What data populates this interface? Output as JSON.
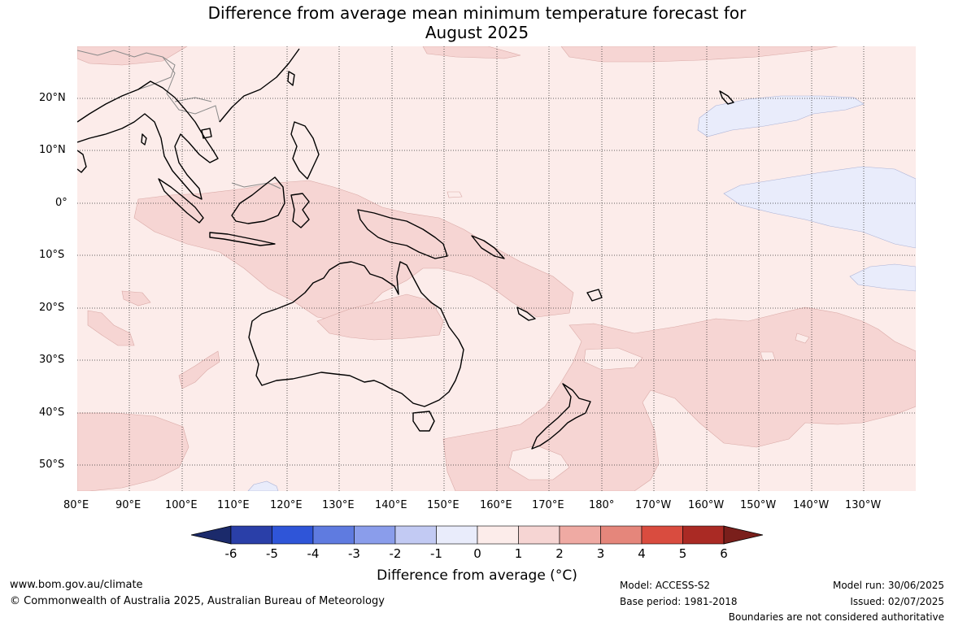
{
  "title_line1": "Difference from average mean minimum temperature forecast for",
  "title_line2": "August 2025",
  "lat_labels": [
    "20°N",
    "10°N",
    "0°",
    "10°S",
    "20°S",
    "30°S",
    "40°S",
    "50°S"
  ],
  "lon_labels": [
    "80°E",
    "90°E",
    "100°E",
    "110°E",
    "120°E",
    "130°E",
    "140°E",
    "150°E",
    "160°E",
    "170°E",
    "180°",
    "170°W",
    "160°W",
    "150°W",
    "140°W",
    "130°W"
  ],
  "colorbar": {
    "ticks": [
      "-6",
      "-5",
      "-4",
      "-3",
      "-2",
      "-1",
      "0",
      "1",
      "2",
      "3",
      "4",
      "5",
      "6"
    ],
    "colors": [
      "#1b2a6b",
      "#2a3fa8",
      "#2f55d8",
      "#5f7be0",
      "#8a9deb",
      "#c2caf3",
      "#e9ecfb",
      "#fcecea",
      "#f6d5d3",
      "#efaaa3",
      "#e5867b",
      "#d94c3f",
      "#aa2a24",
      "#7a1f1b"
    ],
    "label": "Difference from average (",
    "label_unit": "°C",
    "label_close": ")"
  },
  "footer": {
    "website": "www.bom.gov.au/climate",
    "copyright": "© Commonwealth of Australia 2025, Australian Bureau of Meteorology",
    "model": "Model: ACCESS-S2",
    "base_period": "Base period: 1981-2018",
    "model_run": "Model run: 30/06/2025",
    "issued": "Issued: 02/07/2025",
    "disclaimer": "Boundaries are not considered authoritative"
  },
  "map_colors": {
    "background": "#fcecea",
    "warm_shade": "#f6d5d3",
    "cool_shade": "#e9ecfb",
    "coast": "#000000",
    "borders": "#888888"
  }
}
